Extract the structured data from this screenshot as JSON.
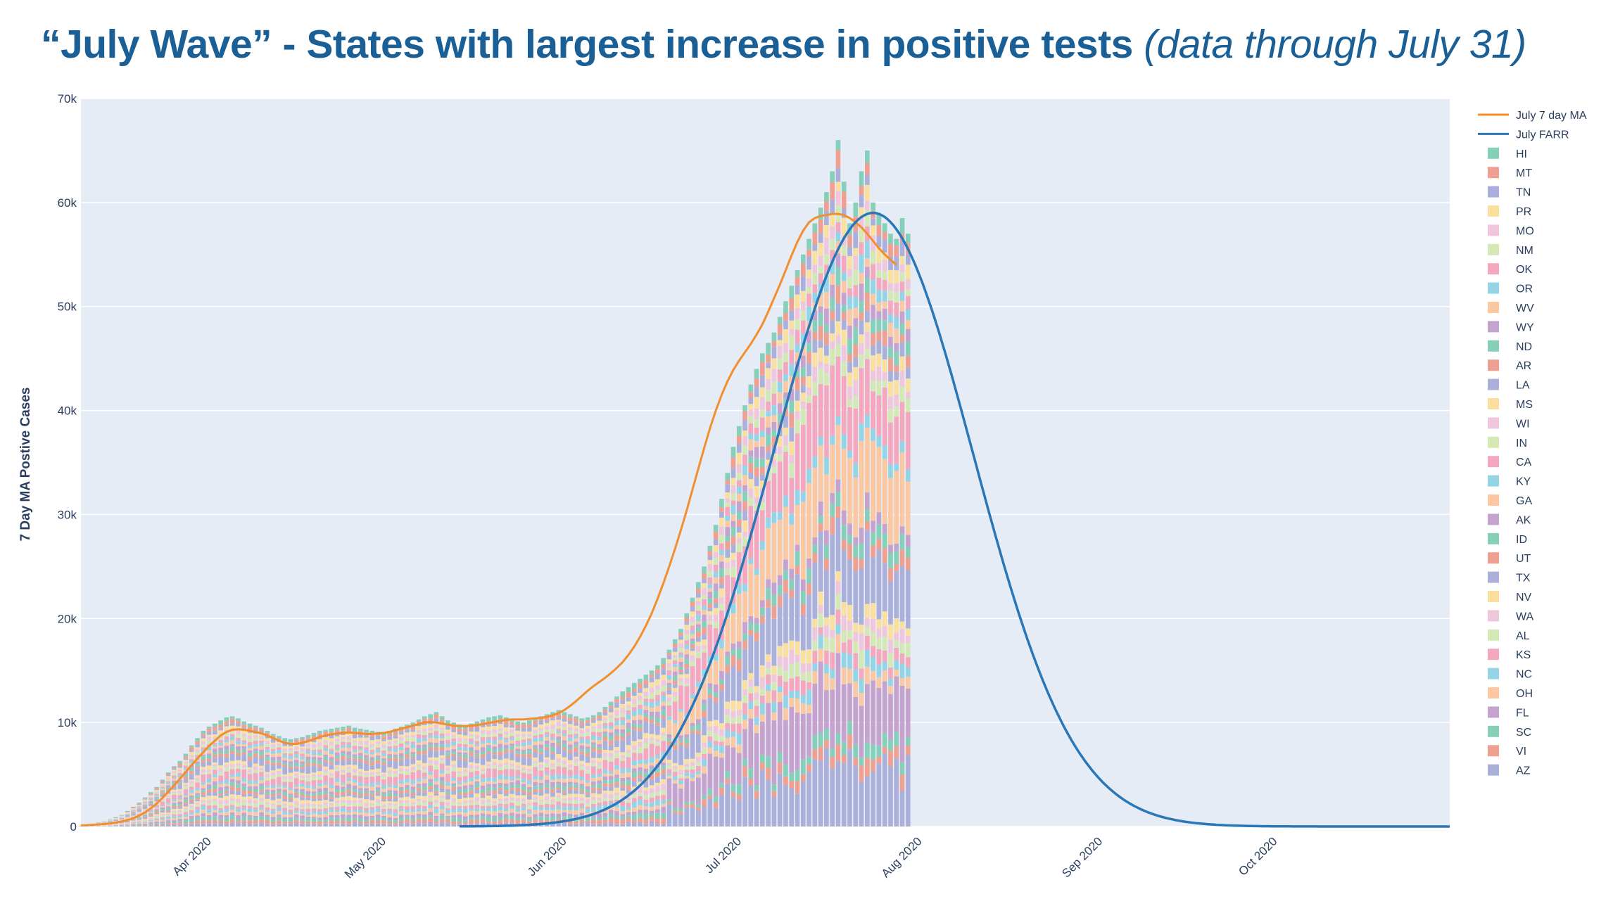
{
  "title": "“July Wave” - States with largest increase in positive tests",
  "subtitle": "(data through July 31)",
  "colors": {
    "plot_bg": "#e5ecf6",
    "grid": "#ffffff",
    "ma_line": "#f28e2b",
    "farr_line": "#2a77b8",
    "title": "#1a5f96",
    "axis_text": "#2a3f5f"
  },
  "chart_data": {
    "type": "bar",
    "barmode": "stack",
    "ylabel": "7 Day MA Postive Cases",
    "xlabel": "",
    "x_range": [
      "2020-03-10",
      "2020-10-31"
    ],
    "ylim": [
      0,
      70000
    ],
    "y_ticks": [
      {
        "value": 0,
        "label": "0"
      },
      {
        "value": 10000,
        "label": "10k"
      },
      {
        "value": 20000,
        "label": "20k"
      },
      {
        "value": 30000,
        "label": "30k"
      },
      {
        "value": 40000,
        "label": "40k"
      },
      {
        "value": 50000,
        "label": "50k"
      },
      {
        "value": 60000,
        "label": "60k"
      },
      {
        "value": 70000,
        "label": "70k"
      }
    ],
    "x_ticks": [
      {
        "date": "2020-04-01",
        "label": "Apr 2020"
      },
      {
        "date": "2020-05-01",
        "label": "May 2020"
      },
      {
        "date": "2020-06-01",
        "label": "Jun 2020"
      },
      {
        "date": "2020-07-01",
        "label": "Jul 2020"
      },
      {
        "date": "2020-08-01",
        "label": "Aug 2020"
      },
      {
        "date": "2020-09-01",
        "label": "Sep 2020"
      },
      {
        "date": "2020-10-01",
        "label": "Oct 2020"
      }
    ],
    "grid": true,
    "legend_position": "right",
    "legend": [
      {
        "name": "July 7 day MA",
        "kind": "line",
        "color": "#f28e2b"
      },
      {
        "name": "July FARR",
        "kind": "line",
        "color": "#2a77b8"
      },
      {
        "name": "HI",
        "kind": "bar",
        "color": "#86cfb8"
      },
      {
        "name": "MT",
        "kind": "bar",
        "color": "#f0a090"
      },
      {
        "name": "TN",
        "kind": "bar",
        "color": "#abb0da"
      },
      {
        "name": "PR",
        "kind": "bar",
        "color": "#fbdf9d"
      },
      {
        "name": "MO",
        "kind": "bar",
        "color": "#f0c6dc"
      },
      {
        "name": "NM",
        "kind": "bar",
        "color": "#d4e8b4"
      },
      {
        "name": "OK",
        "kind": "bar",
        "color": "#f4a7bd"
      },
      {
        "name": "OR",
        "kind": "bar",
        "color": "#93d5e6"
      },
      {
        "name": "WV",
        "kind": "bar",
        "color": "#fcc8a1"
      },
      {
        "name": "WY",
        "kind": "bar",
        "color": "#c6a3cf"
      },
      {
        "name": "ND",
        "kind": "bar",
        "color": "#86cfb8"
      },
      {
        "name": "AR",
        "kind": "bar",
        "color": "#f0a090"
      },
      {
        "name": "LA",
        "kind": "bar",
        "color": "#abb0da"
      },
      {
        "name": "MS",
        "kind": "bar",
        "color": "#fbdf9d"
      },
      {
        "name": "WI",
        "kind": "bar",
        "color": "#f0c6dc"
      },
      {
        "name": "IN",
        "kind": "bar",
        "color": "#d4e8b4"
      },
      {
        "name": "CA",
        "kind": "bar",
        "color": "#f4a7bd"
      },
      {
        "name": "KY",
        "kind": "bar",
        "color": "#93d5e6"
      },
      {
        "name": "GA",
        "kind": "bar",
        "color": "#fcc8a1"
      },
      {
        "name": "AK",
        "kind": "bar",
        "color": "#c6a3cf"
      },
      {
        "name": "ID",
        "kind": "bar",
        "color": "#86cfb8"
      },
      {
        "name": "UT",
        "kind": "bar",
        "color": "#f0a090"
      },
      {
        "name": "TX",
        "kind": "bar",
        "color": "#abb0da"
      },
      {
        "name": "NV",
        "kind": "bar",
        "color": "#fbdf9d"
      },
      {
        "name": "WA",
        "kind": "bar",
        "color": "#f0c6dc"
      },
      {
        "name": "AL",
        "kind": "bar",
        "color": "#d4e8b4"
      },
      {
        "name": "KS",
        "kind": "bar",
        "color": "#f4a7bd"
      },
      {
        "name": "NC",
        "kind": "bar",
        "color": "#93d5e6"
      },
      {
        "name": "OH",
        "kind": "bar",
        "color": "#fcc8a1"
      },
      {
        "name": "FL",
        "kind": "bar",
        "color": "#c6a3cf"
      },
      {
        "name": "SC",
        "kind": "bar",
        "color": "#86cfb8"
      },
      {
        "name": "VI",
        "kind": "bar",
        "color": "#f0a090"
      },
      {
        "name": "AZ",
        "kind": "bar",
        "color": "#abb0da"
      }
    ],
    "daily_totals": {
      "start_date": "2020-03-10",
      "values": [
        100,
        200,
        300,
        400,
        500,
        700,
        900,
        1100,
        1500,
        1900,
        2300,
        2800,
        3300,
        3800,
        4500,
        5200,
        5800,
        6300,
        7000,
        7800,
        8500,
        9200,
        9600,
        9900,
        10200,
        10500,
        10600,
        10400,
        10100,
        9900,
        9700,
        9500,
        9200,
        8900,
        8700,
        8500,
        8400,
        8500,
        8600,
        8800,
        9000,
        9200,
        9300,
        9400,
        9500,
        9600,
        9700,
        9500,
        9400,
        9300,
        9200,
        9100,
        9000,
        9200,
        9400,
        9600,
        9800,
        10000,
        10300,
        10600,
        10800,
        11000,
        10600,
        10200,
        10000,
        9800,
        9700,
        9900,
        10100,
        10300,
        10500,
        10600,
        10700,
        10500,
        10300,
        10100,
        10000,
        10200,
        10400,
        10600,
        10800,
        11000,
        11200,
        11000,
        10800,
        10600,
        10400,
        10500,
        10700,
        11000,
        11500,
        12000,
        12500,
        13000,
        13400,
        13800,
        14200,
        14600,
        15000,
        15500,
        16200,
        17000,
        18000,
        19000,
        20500,
        22000,
        23500,
        25000,
        27000,
        29000,
        31500,
        34000,
        36500,
        38500,
        40500,
        42500,
        44000,
        45500,
        46500,
        47500,
        49000,
        50500,
        52000,
        53500,
        55000,
        56500,
        58000,
        59500,
        61000,
        63000,
        66000,
        62000,
        58000,
        60000,
        63000,
        65000,
        60000,
        59000,
        58000,
        57000,
        56500,
        58500,
        57000
      ]
    },
    "series": [
      {
        "name": "July 7 day MA",
        "type": "line",
        "start_date": "2020-03-10",
        "values": [
          100,
          130,
          160,
          200,
          240,
          300,
          380,
          480,
          620,
          800,
          1050,
          1350,
          1750,
          2200,
          2750,
          3350,
          3950,
          4600,
          5250,
          5900,
          6550,
          7150,
          7750,
          8250,
          8750,
          9100,
          9300,
          9350,
          9300,
          9200,
          9100,
          8950,
          8750,
          8500,
          8250,
          8050,
          7950,
          7950,
          8050,
          8200,
          8400,
          8600,
          8750,
          8850,
          8950,
          9000,
          9050,
          9000,
          8950,
          8900,
          8900,
          8950,
          9000,
          9100,
          9250,
          9400,
          9550,
          9700,
          9850,
          10000,
          10050,
          10000,
          9900,
          9800,
          9700,
          9650,
          9650,
          9700,
          9750,
          9850,
          9950,
          10050,
          10150,
          10250,
          10300,
          10300,
          10300,
          10350,
          10400,
          10450,
          10550,
          10700,
          10900,
          11200,
          11600,
          12050,
          12550,
          13050,
          13500,
          13900,
          14300,
          14750,
          15250,
          15800,
          16500,
          17300,
          18250,
          19300,
          20500,
          21900,
          23400,
          25000,
          26700,
          28500,
          30400,
          32400,
          34400,
          36400,
          38300,
          40000,
          41500,
          42800,
          43900,
          44800,
          45600,
          46400,
          47300,
          48300,
          49500,
          50800,
          52100,
          53500,
          54900,
          56200,
          57300,
          58100,
          58500,
          58700,
          58800,
          58900,
          58900,
          58800,
          58500,
          58100,
          57600,
          57000,
          56300,
          55600,
          55000,
          54500,
          54000
        ]
      },
      {
        "name": "July FARR",
        "type": "line",
        "peak_date": "2020-07-24",
        "peak_value": 59000,
        "sigma_days": 17.2,
        "date_range": [
          "2020-05-14",
          "2020-10-31"
        ]
      }
    ]
  }
}
